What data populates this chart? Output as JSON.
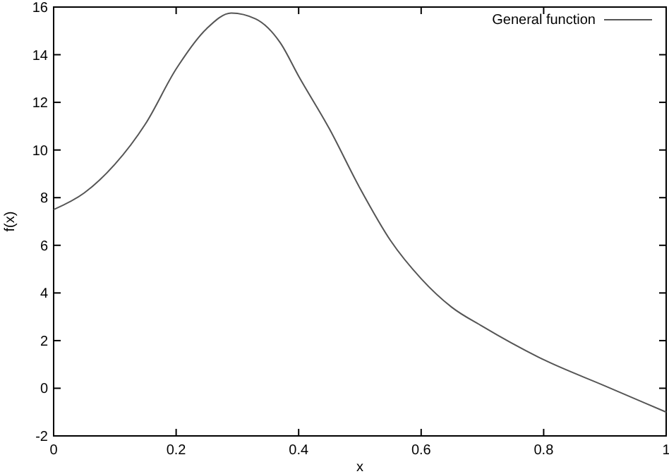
{
  "chart_data": {
    "type": "line",
    "xlabel": "x",
    "ylabel": "f(x)",
    "x": [
      0,
      0.05,
      0.1,
      0.15,
      0.2,
      0.25,
      0.29,
      0.33,
      0.37,
      0.4,
      0.45,
      0.5,
      0.55,
      0.6,
      0.65,
      0.7,
      0.8,
      0.9,
      1
    ],
    "series": [
      {
        "name": "General function",
        "color": "#555555",
        "values": [
          7.5,
          8.2,
          9.4,
          11.1,
          13.4,
          15.1,
          15.75,
          15.5,
          14.5,
          13.1,
          10.9,
          8.4,
          6.2,
          4.6,
          3.4,
          2.6,
          1.2,
          0.1,
          -1.0
        ]
      }
    ],
    "xlim": [
      0,
      1
    ],
    "ylim": [
      -2,
      16
    ],
    "xticks": [
      0,
      0.2,
      0.4,
      0.6,
      0.8,
      1
    ],
    "yticks": [
      -2,
      0,
      2,
      4,
      6,
      8,
      10,
      12,
      14,
      16
    ],
    "legend": "top right",
    "grid": false,
    "line_style": "solid"
  }
}
